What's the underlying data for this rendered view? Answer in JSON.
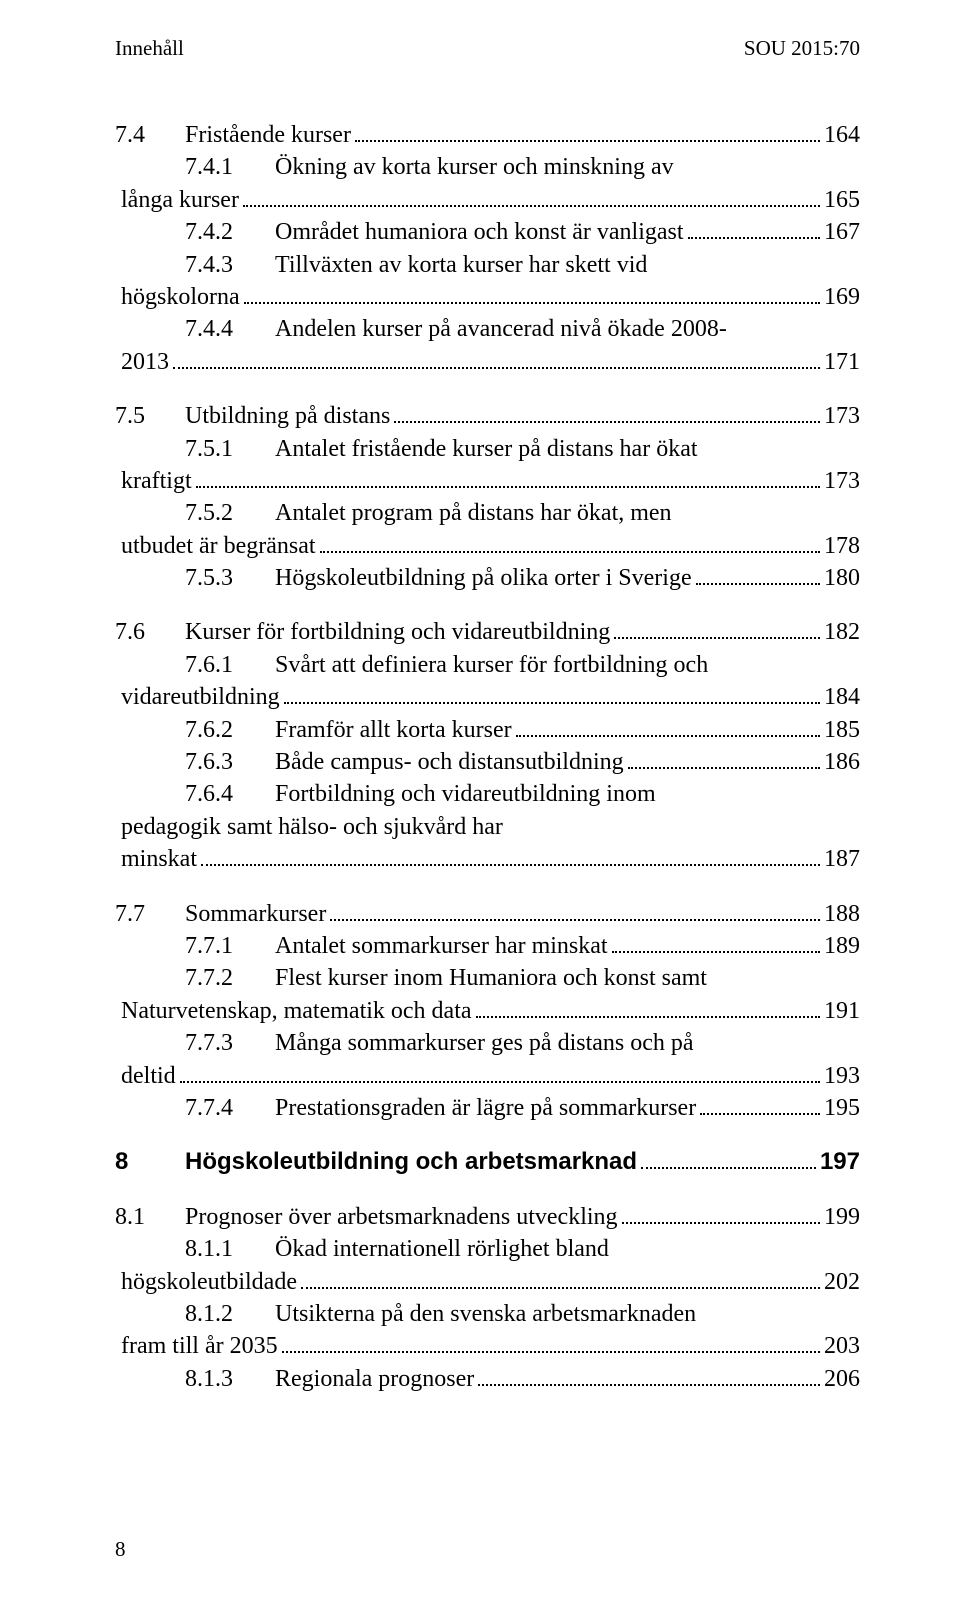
{
  "header": {
    "left": "Innehåll",
    "right": "SOU 2015:70"
  },
  "footer": {
    "page_number": "8"
  },
  "toc": [
    {
      "type": "group",
      "items": [
        {
          "level": 1,
          "num": "7.4",
          "lines": [
            "Fristående kurser"
          ],
          "page": "164"
        },
        {
          "level": 2,
          "num": "7.4.1",
          "lines": [
            "Ökning av korta kurser och minskning av",
            "långa kurser"
          ],
          "page": "165"
        },
        {
          "level": 2,
          "num": "7.4.2",
          "lines": [
            "Området humaniora och konst är vanligast"
          ],
          "page": "167"
        },
        {
          "level": 2,
          "num": "7.4.3",
          "lines": [
            "Tillväxten av korta kurser har skett vid",
            "högskolorna"
          ],
          "page": "169"
        },
        {
          "level": 2,
          "num": "7.4.4",
          "lines": [
            "Andelen kurser på avancerad nivå ökade 2008-",
            "2013"
          ],
          "page": "171"
        }
      ]
    },
    {
      "type": "group",
      "items": [
        {
          "level": 1,
          "num": "7.5",
          "lines": [
            "Utbildning på distans"
          ],
          "page": "173"
        },
        {
          "level": 2,
          "num": "7.5.1",
          "lines": [
            "Antalet fristående kurser på distans har ökat",
            "kraftigt"
          ],
          "page": "173"
        },
        {
          "level": 2,
          "num": "7.5.2",
          "lines": [
            "Antalet program på distans har ökat, men",
            "utbudet är begränsat"
          ],
          "page": "178"
        },
        {
          "level": 2,
          "num": "7.5.3",
          "lines": [
            "Högskoleutbildning på olika orter i Sverige"
          ],
          "page": "180"
        }
      ]
    },
    {
      "type": "group",
      "items": [
        {
          "level": 1,
          "num": "7.6",
          "lines": [
            "Kurser för fortbildning och vidareutbildning"
          ],
          "page": "182"
        },
        {
          "level": 2,
          "num": "7.6.1",
          "lines": [
            "Svårt att definiera kurser för fortbildning och",
            "vidareutbildning"
          ],
          "page": "184"
        },
        {
          "level": 2,
          "num": "7.6.2",
          "lines": [
            "Framför allt korta kurser"
          ],
          "page": "185"
        },
        {
          "level": 2,
          "num": "7.6.3",
          "lines": [
            "Både campus- och distansutbildning"
          ],
          "page": "186"
        },
        {
          "level": 2,
          "num": "7.6.4",
          "lines": [
            "Fortbildning och vidareutbildning inom",
            "pedagogik samt hälso- och sjukvård har",
            "minskat"
          ],
          "page": "187"
        }
      ]
    },
    {
      "type": "group",
      "items": [
        {
          "level": 1,
          "num": "7.7",
          "lines": [
            "Sommarkurser"
          ],
          "page": "188"
        },
        {
          "level": 2,
          "num": "7.7.1",
          "lines": [
            "Antalet sommarkurser har minskat"
          ],
          "page": "189"
        },
        {
          "level": 2,
          "num": "7.7.2",
          "lines": [
            "Flest kurser inom Humaniora och konst samt",
            "Naturvetenskap, matematik och data"
          ],
          "page": "191"
        },
        {
          "level": 2,
          "num": "7.7.3",
          "lines": [
            "Många sommarkurser ges på distans och på",
            "deltid"
          ],
          "page": "193"
        },
        {
          "level": 2,
          "num": "7.7.4",
          "lines": [
            "Prestationsgraden är lägre på sommarkurser"
          ],
          "page": "195"
        }
      ]
    },
    {
      "type": "chapter",
      "num": "8",
      "lines": [
        "Högskoleutbildning och arbetsmarknad"
      ],
      "page": "197"
    },
    {
      "type": "group",
      "items": [
        {
          "level": 1,
          "num": "8.1",
          "lines": [
            "Prognoser över arbetsmarknadens utveckling"
          ],
          "page": "199"
        },
        {
          "level": 2,
          "num": "8.1.1",
          "lines": [
            "Ökad internationell rörlighet bland",
            "högskoleutbildade"
          ],
          "page": "202"
        },
        {
          "level": 2,
          "num": "8.1.2",
          "lines": [
            "Utsikterna på den svenska arbetsmarknaden",
            "fram till år 2035"
          ],
          "page": "203"
        },
        {
          "level": 2,
          "num": "8.1.3",
          "lines": [
            "Regionala prognoser"
          ],
          "page": "206"
        }
      ]
    }
  ]
}
